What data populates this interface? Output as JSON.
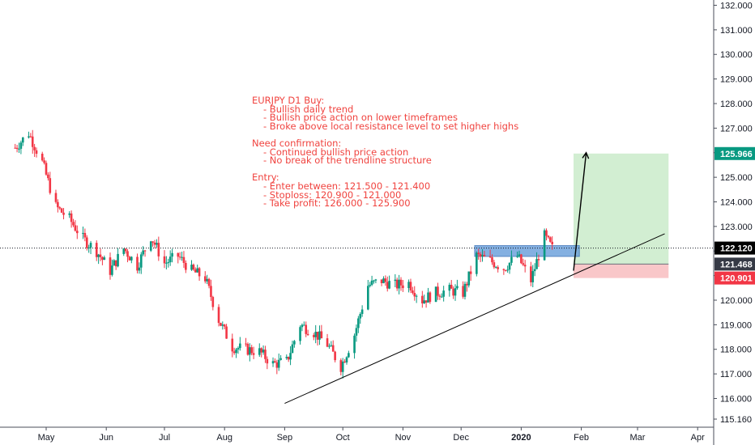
{
  "chart_data": {
    "type": "candlestick",
    "symbol": "EURJPY",
    "timeframe": "D1",
    "y_ticks": [
      "132.000",
      "131.000",
      "130.000",
      "129.000",
      "128.000",
      "127.000",
      "126.000",
      "125.000",
      "124.000",
      "123.000",
      "122.000",
      "121.000",
      "120.000",
      "119.000",
      "118.000",
      "117.000",
      "116.000",
      "115.160"
    ],
    "ylim": [
      115.16,
      132.2
    ],
    "x_ticks": [
      "May",
      "Jun",
      "Jul",
      "Aug",
      "Sep",
      "Oct",
      "Nov",
      "Dec",
      "2020",
      "Feb",
      "Mar",
      "Apr"
    ],
    "price_labels": [
      {
        "label": "125.966",
        "value": 125.966,
        "color": "#089981"
      },
      {
        "label": "122.120",
        "value": 122.12,
        "color": "#000000"
      },
      {
        "label": "121.468",
        "value": 121.468,
        "color": "#363a45"
      },
      {
        "label": "120.901",
        "value": 120.901,
        "color": "#f23645"
      }
    ],
    "current_price": 122.12,
    "entry_zone": [
      121.4,
      121.5
    ],
    "stop_loss": 120.901,
    "take_profit": 125.966,
    "close_points": [
      [
        "2019-04-15",
        126.2
      ],
      [
        "2019-04-22",
        126.8
      ],
      [
        "2019-04-29",
        125.6
      ],
      [
        "2019-05-06",
        123.8
      ],
      [
        "2019-05-13",
        123.3
      ],
      [
        "2019-05-20",
        122.5
      ],
      [
        "2019-05-27",
        122.0
      ],
      [
        "2019-06-03",
        121.2
      ],
      [
        "2019-06-10",
        122.1
      ],
      [
        "2019-06-17",
        121.4
      ],
      [
        "2019-06-24",
        122.6
      ],
      [
        "2019-07-01",
        121.5
      ],
      [
        "2019-07-08",
        121.8
      ],
      [
        "2019-07-15",
        121.2
      ],
      [
        "2019-07-22",
        120.9
      ],
      [
        "2019-07-29",
        119.2
      ],
      [
        "2019-08-05",
        118.1
      ],
      [
        "2019-08-12",
        118.0
      ],
      [
        "2019-08-19",
        117.9
      ],
      [
        "2019-08-26",
        117.4
      ],
      [
        "2019-09-02",
        117.5
      ],
      [
        "2019-09-09",
        119.0
      ],
      [
        "2019-09-16",
        118.7
      ],
      [
        "2019-09-23",
        118.2
      ],
      [
        "2019-09-30",
        117.3
      ],
      [
        "2019-10-07",
        118.6
      ],
      [
        "2019-10-14",
        120.6
      ],
      [
        "2019-10-21",
        120.8
      ],
      [
        "2019-10-28",
        120.6
      ],
      [
        "2019-11-04",
        120.7
      ],
      [
        "2019-11-11",
        120.0
      ],
      [
        "2019-11-18",
        120.3
      ],
      [
        "2019-11-25",
        120.4
      ],
      [
        "2019-12-02",
        120.3
      ],
      [
        "2019-12-09",
        121.8
      ],
      [
        "2019-12-16",
        121.6
      ],
      [
        "2019-12-23",
        121.3
      ],
      [
        "2019-12-30",
        121.8
      ],
      [
        "2020-01-06",
        120.8
      ],
      [
        "2020-01-13",
        122.6
      ],
      [
        "2020-01-17",
        122.1
      ]
    ],
    "trendline": [
      [
        "2019-09-01",
        115.8
      ],
      [
        "2020-03-15",
        122.7
      ]
    ],
    "projection_arrow": [
      [
        "2020-01-28",
        121.2
      ],
      [
        "2020-02-01",
        126.0
      ]
    ],
    "colors": {
      "up": "#089981",
      "down": "#f23645",
      "trendline": "#000000"
    }
  },
  "annotation": {
    "lines": [
      {
        "text": "EURJPY D1 Buy:",
        "indent": false
      },
      {
        "text": "- Bullish daily trend",
        "indent": true
      },
      {
        "text": "- Bullish price action on lower timeframes",
        "indent": true
      },
      {
        "text": "- Broke above local resistance level to set higher highs",
        "indent": true
      },
      {
        "text": "",
        "indent": false
      },
      {
        "text": "Need confirmation:",
        "indent": false
      },
      {
        "text": "- Continued bullish price action",
        "indent": true
      },
      {
        "text": "- No break of the trendline structure",
        "indent": true
      },
      {
        "text": "",
        "indent": false
      },
      {
        "text": "Entry:",
        "indent": false
      },
      {
        "text": "- Enter between: 121.500 - 121.400",
        "indent": true
      },
      {
        "text": "- Stoploss: 120.900 - 121.000",
        "indent": true
      },
      {
        "text": "- Take profit: 126.000 - 125.900",
        "indent": true
      }
    ]
  }
}
